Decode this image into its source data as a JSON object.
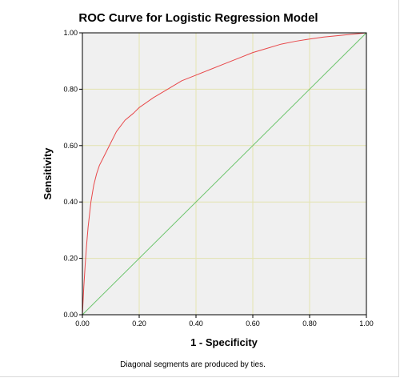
{
  "chart_data": {
    "type": "line",
    "title": "ROC Curve for Logistic Regression Model",
    "xlabel": "1 - Specificity",
    "ylabel": "Sensitivity",
    "xlim": [
      0,
      1
    ],
    "ylim": [
      0,
      1
    ],
    "x_ticks": [
      "0.00",
      "0.20",
      "0.40",
      "0.60",
      "0.80",
      "1.00"
    ],
    "y_ticks": [
      "0.00",
      "0.20",
      "0.40",
      "0.60",
      "0.80",
      "1.00"
    ],
    "grid": true,
    "footnote": "Diagonal segments are produced by ties.",
    "colors": {
      "plot_background": "#f0f0f0",
      "grid": "#e3e3b0",
      "roc_curve": "#e8484a",
      "reference_line": "#6cc46c"
    },
    "series": [
      {
        "x": [
          0,
          0.005,
          0.01,
          0.015,
          0.02,
          0.03,
          0.04,
          0.05,
          0.06,
          0.08,
          0.1,
          0.12,
          0.15,
          0.18,
          0.2,
          0.25,
          0.3,
          0.35,
          0.4,
          0.45,
          0.5,
          0.55,
          0.6,
          0.65,
          0.7,
          0.75,
          0.8,
          0.85,
          0.9,
          0.95,
          1.0
        ],
        "y": [
          0,
          0.1,
          0.18,
          0.25,
          0.31,
          0.4,
          0.46,
          0.5,
          0.53,
          0.57,
          0.61,
          0.65,
          0.69,
          0.715,
          0.735,
          0.77,
          0.8,
          0.83,
          0.85,
          0.87,
          0.89,
          0.91,
          0.93,
          0.945,
          0.96,
          0.97,
          0.978,
          0.985,
          0.99,
          0.995,
          1.0
        ]
      },
      {
        "x": [
          0,
          1
        ],
        "y": [
          0,
          1
        ]
      }
    ]
  }
}
